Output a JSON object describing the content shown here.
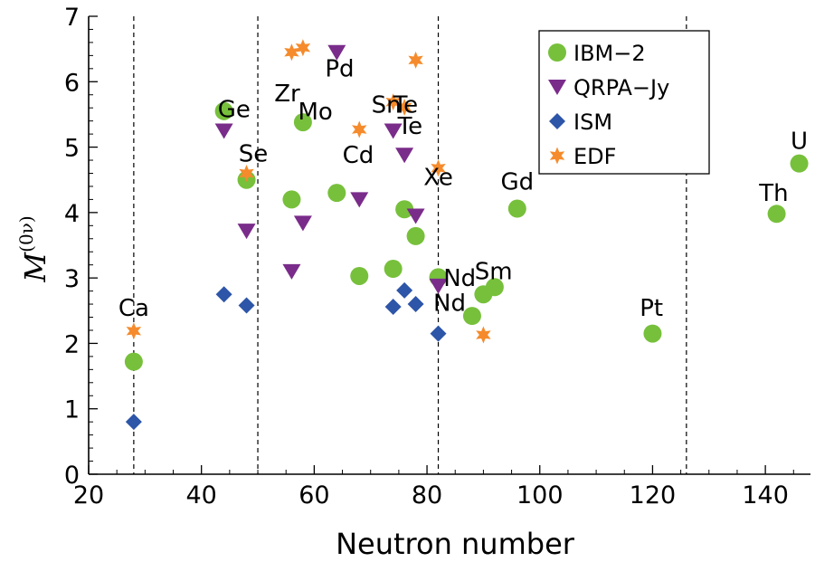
{
  "chart_data": {
    "type": "scatter",
    "xlabel": "Neutron number",
    "ylabel": "M",
    "ylabel_sup": "(0ν)",
    "xlim": [
      20,
      148
    ],
    "ylim": [
      0,
      7
    ],
    "xticks": [
      20,
      40,
      60,
      80,
      100,
      120,
      140
    ],
    "yticks": [
      0,
      1,
      2,
      3,
      4,
      5,
      6,
      7
    ],
    "grid": false,
    "legend_position": "top-right",
    "vertical_lines": [
      28,
      50,
      82,
      126
    ],
    "series": [
      {
        "name": "IBM−2",
        "marker": "circle",
        "color": "#77c03b",
        "points": [
          [
            28,
            1.72
          ],
          [
            48,
            4.5
          ],
          [
            44,
            5.55
          ],
          [
            56,
            4.2
          ],
          [
            58,
            5.38
          ],
          [
            64,
            4.3
          ],
          [
            68,
            3.03
          ],
          [
            74,
            3.14
          ],
          [
            76,
            4.05
          ],
          [
            78,
            3.64
          ],
          [
            82,
            3.01
          ],
          [
            88,
            2.42
          ],
          [
            90,
            2.75
          ],
          [
            92,
            2.86
          ],
          [
            96,
            4.06
          ],
          [
            120,
            2.15
          ],
          [
            142,
            3.98
          ],
          [
            146,
            4.75
          ]
        ]
      },
      {
        "name": "QRPA−Jy",
        "marker": "triangle-down",
        "color": "#7a2c8a",
        "points": [
          [
            44,
            5.25
          ],
          [
            48,
            3.72
          ],
          [
            56,
            3.1
          ],
          [
            58,
            3.84
          ],
          [
            64,
            6.45
          ],
          [
            68,
            4.2
          ],
          [
            74,
            5.25
          ],
          [
            76,
            4.88
          ],
          [
            78,
            3.95
          ],
          [
            82,
            2.88
          ]
        ]
      },
      {
        "name": "ISM",
        "marker": "diamond",
        "color": "#2d55a8",
        "points": [
          [
            28,
            0.8
          ],
          [
            44,
            2.75
          ],
          [
            48,
            2.58
          ],
          [
            74,
            2.56
          ],
          [
            76,
            2.81
          ],
          [
            78,
            2.6
          ],
          [
            82,
            2.15
          ]
        ]
      },
      {
        "name": "EDF",
        "marker": "star",
        "color": "#f58b2c",
        "points": [
          [
            28,
            2.19
          ],
          [
            48,
            4.6
          ],
          [
            56,
            6.45
          ],
          [
            58,
            6.52
          ],
          [
            68,
            5.27
          ],
          [
            74,
            5.69
          ],
          [
            76,
            5.61
          ],
          [
            78,
            6.33
          ],
          [
            82,
            4.68
          ],
          [
            90,
            2.13
          ]
        ]
      }
    ],
    "annotations": [
      {
        "text": "Ca",
        "x": 28,
        "y": 2.42
      },
      {
        "text": "Ge",
        "x": 45.8,
        "y": 5.46
      },
      {
        "text": "Se",
        "x": 49.2,
        "y": 4.78
      },
      {
        "text": "Zr",
        "x": 55.2,
        "y": 5.7
      },
      {
        "text": "Mo",
        "x": 60.2,
        "y": 5.42
      },
      {
        "text": "Pd",
        "x": 64.5,
        "y": 6.08
      },
      {
        "text": "Cd",
        "x": 67.8,
        "y": 4.76
      },
      {
        "text": "Sn",
        "x": 72.8,
        "y": 5.53
      },
      {
        "text": "Te",
        "x": 76.2,
        "y": 5.53
      },
      {
        "text": "Te",
        "x": 77.0,
        "y": 5.2
      },
      {
        "text": "Xe",
        "x": 82.0,
        "y": 4.42
      },
      {
        "text": "Gd",
        "x": 96.0,
        "y": 4.35
      },
      {
        "text": "Nd",
        "x": 85.8,
        "y": 2.88
      },
      {
        "text": "Sm",
        "x": 91.8,
        "y": 2.98
      },
      {
        "text": "Nd",
        "x": 84.0,
        "y": 2.5
      },
      {
        "text": "Pt",
        "x": 119.8,
        "y": 2.42
      },
      {
        "text": "Th",
        "x": 141.5,
        "y": 4.18
      },
      {
        "text": "U",
        "x": 146.0,
        "y": 4.97
      }
    ]
  }
}
